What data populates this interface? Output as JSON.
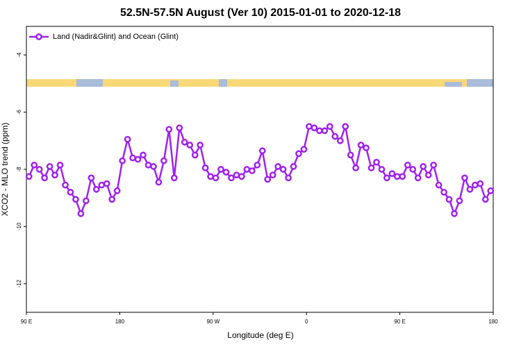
{
  "chart_data": {
    "type": "line",
    "title": "52.5N-57.5N August (Ver 10)   2015-01-01 to 2020-12-18",
    "x_label": "Longitude (deg E)",
    "y_label": "XCO2 - MLO trend (ppm)",
    "x": [
      92.5,
      97.5,
      102.5,
      107.5,
      112.5,
      117.5,
      122.5,
      127.5,
      132.5,
      137.5,
      142.5,
      147.5,
      152.5,
      157.5,
      162.5,
      167.5,
      172.5,
      177.5,
      182.5,
      187.5,
      192.5,
      197.5,
      202.5,
      207.5,
      212.5,
      217.5,
      222.5,
      227.5,
      232.5,
      237.5,
      242.5,
      247.5,
      252.5,
      257.5,
      262.5,
      267.5,
      272.5,
      277.5,
      282.5,
      287.5,
      292.5,
      297.5,
      302.5,
      307.5,
      312.5,
      317.5,
      322.5,
      327.5,
      332.5,
      337.5,
      342.5,
      347.5,
      352.5,
      357.5,
      362.5,
      367.5,
      372.5,
      377.5,
      382.5,
      387.5,
      392.5,
      397.5,
      402.5,
      407.5,
      412.5,
      417.5,
      422.5,
      427.5,
      432.5,
      437.5,
      442.5,
      447.5,
      452.5,
      457.5,
      462.5,
      467.5,
      472.5,
      477.5,
      482.5,
      487.5,
      492.5,
      497.5,
      502.5,
      507.5,
      512.5,
      517.5,
      522.5,
      527.5,
      532.5,
      537.5
    ],
    "series": [
      {
        "name": "Land (Nadir&Glint) and Ocean (Glint)",
        "color": "#a020f0",
        "values": [
          -8.25,
          -7.85,
          -8.0,
          -8.3,
          -7.9,
          -8.2,
          -7.85,
          -8.55,
          -8.8,
          -9.05,
          -9.55,
          -9.1,
          -8.3,
          -8.7,
          -8.55,
          -8.5,
          -9.05,
          -8.75,
          -7.7,
          -6.95,
          -7.6,
          -7.65,
          -7.5,
          -7.85,
          -7.9,
          -8.45,
          -7.7,
          -6.6,
          -8.3,
          -6.55,
          -7.05,
          -7.15,
          -7.5,
          -7.15,
          -7.95,
          -8.25,
          -8.3,
          -8.0,
          -8.1,
          -8.3,
          -8.2,
          -8.25,
          -8.0,
          -8.05,
          -7.85,
          -7.35,
          -8.35,
          -8.2,
          -7.9,
          -8.0,
          -8.3,
          -7.9,
          -7.45,
          -7.3,
          -6.5,
          -6.55,
          -6.65,
          -6.65,
          -6.5,
          -6.85,
          -7.0,
          -6.5,
          -7.5,
          -7.95,
          -7.15,
          -7.25,
          -7.95,
          -7.75,
          -8.0,
          -8.3,
          -8.15,
          -8.25,
          -8.25,
          -7.85,
          -8.0,
          -8.3,
          -7.9,
          -8.2,
          -7.85,
          -8.55,
          -8.8,
          -9.05,
          -9.55,
          -9.1,
          -8.3,
          -8.7,
          -8.55,
          -8.5,
          -9.05,
          -8.75
        ]
      }
    ],
    "xlim": [
      90,
      540
    ],
    "xticks": [
      {
        "value": 90,
        "label": "90 E"
      },
      180,
      {
        "value": 270,
        "label": "90 W"
      },
      {
        "value": 360,
        "label": "0"
      },
      {
        "value": 450,
        "label": "90 E"
      },
      {
        "value": 540,
        "label": "180"
      }
    ],
    "ylim": [
      -13,
      -3
    ],
    "yticks": [
      -4,
      -6,
      -8,
      -10,
      -12
    ],
    "legend": "upper left"
  }
}
